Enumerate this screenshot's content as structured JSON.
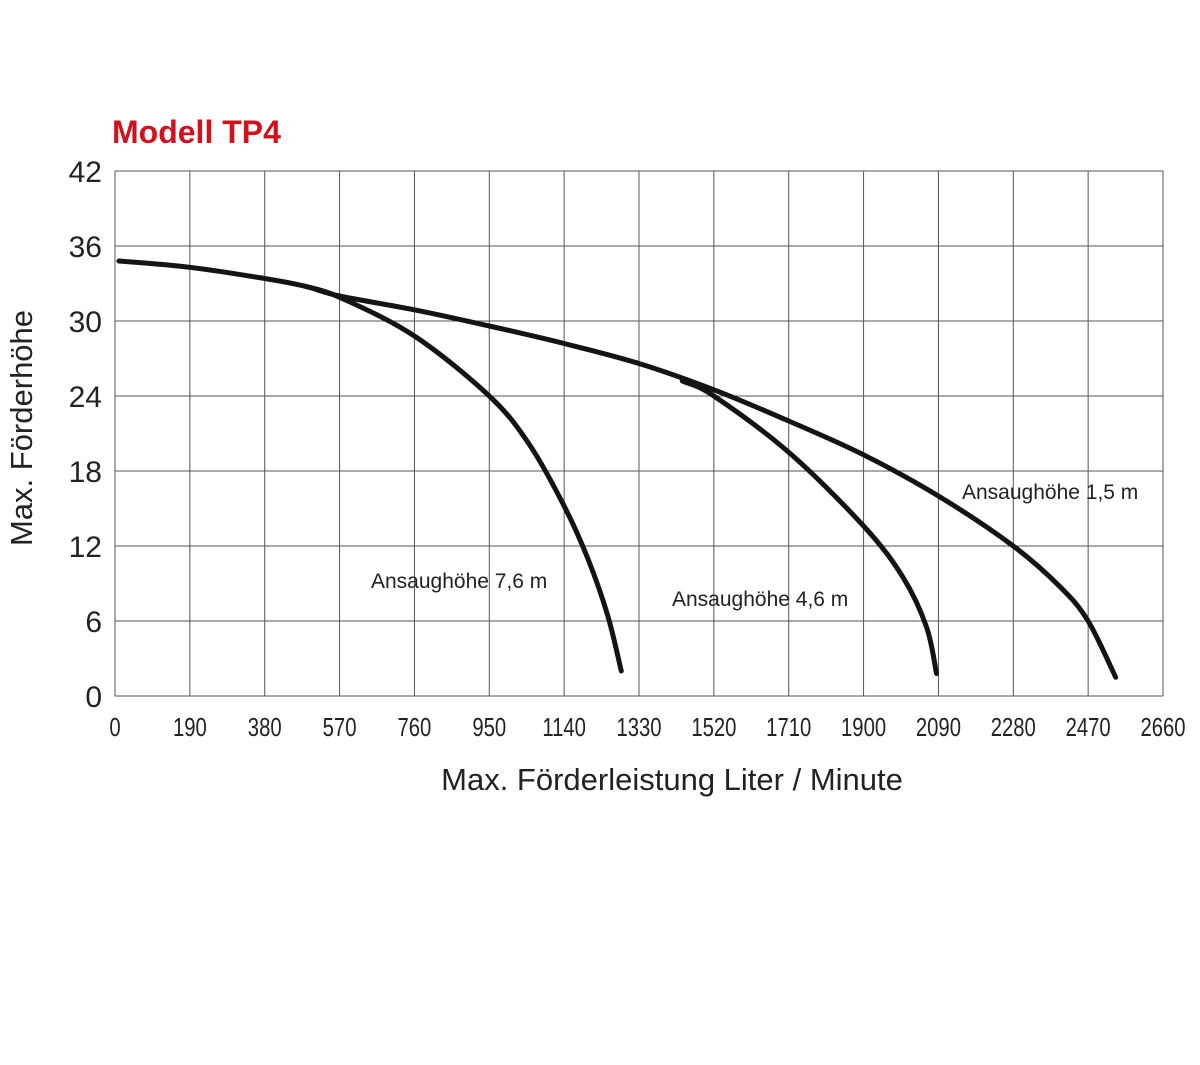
{
  "chart_data": {
    "type": "line",
    "title": "Modell TP4",
    "xlabel": "Max. Förderleistung Liter / Minute",
    "ylabel": "Max. Förderhöhe",
    "xlim": [
      0,
      2660
    ],
    "ylim": [
      0,
      42
    ],
    "x_ticks": [
      "0",
      "190",
      "380",
      "570",
      "760",
      "950",
      "1140",
      "1330",
      "1520",
      "1710",
      "1900",
      "2090",
      "2280",
      "2470",
      "2660"
    ],
    "y_ticks": [
      "0",
      "6",
      "12",
      "18",
      "24",
      "30",
      "36",
      "42"
    ],
    "grid": true,
    "series": [
      {
        "name": "Ansaughöhe 1,5 m",
        "x": [
          10,
          190,
          380,
          480,
          570,
          760,
          950,
          1140,
          1330,
          1520,
          1710,
          1900,
          2090,
          2280,
          2400,
          2470,
          2540
        ],
        "y": [
          34.8,
          34.3,
          33.4,
          32.8,
          32.0,
          30.9,
          29.6,
          28.2,
          26.6,
          24.5,
          22.0,
          19.3,
          16.0,
          12.0,
          8.7,
          6.0,
          1.5
        ]
      },
      {
        "name": "Ansaughöhe 4,6 m",
        "x": [
          1440,
          1520,
          1710,
          1900,
          2000,
          2060,
          2085
        ],
        "y": [
          25.2,
          24.0,
          19.5,
          13.6,
          9.5,
          5.5,
          1.8
        ]
      },
      {
        "name": "Ansaughöhe 7,6 m",
        "x": [
          480,
          570,
          760,
          950,
          1050,
          1140,
          1200,
          1250,
          1285
        ],
        "y": [
          32.8,
          31.9,
          28.8,
          24.0,
          20.2,
          15.2,
          11.0,
          6.5,
          2.0
        ]
      }
    ],
    "annotations": [
      "Ansaughöhe 1,5 m",
      "Ansaughöhe 4,6 m",
      "Ansaughöhe 7,6 m"
    ],
    "colors": {
      "title": "#d2101e",
      "curve": "#141414",
      "grid": "#555555"
    }
  }
}
